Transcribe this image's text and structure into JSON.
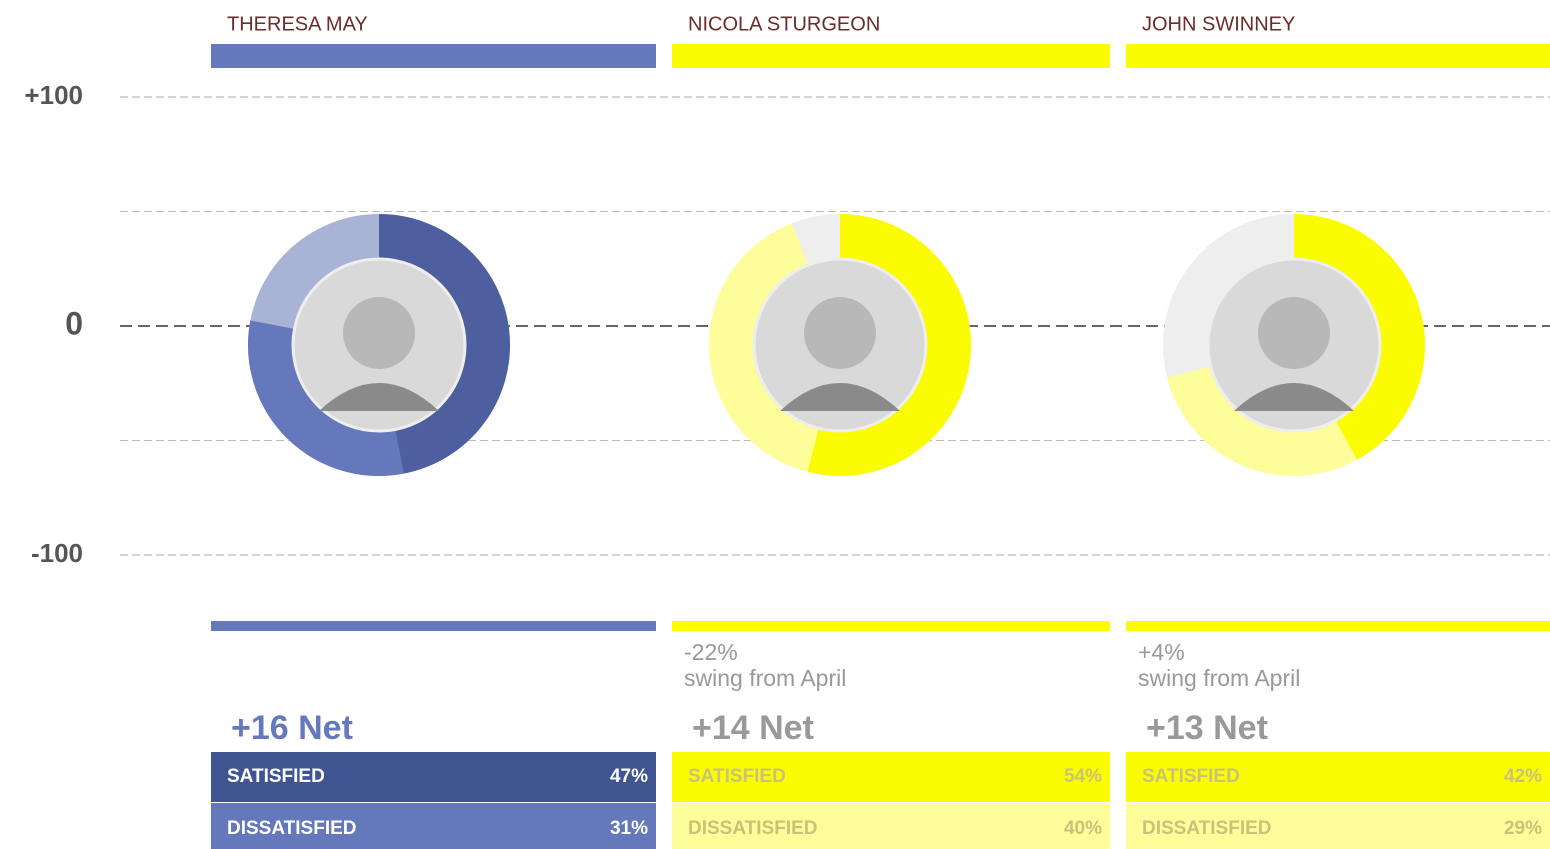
{
  "chart_data": {
    "type": "net-donut",
    "ylim": [
      -100,
      100
    ],
    "yticks": [
      {
        "value": 100,
        "label": "+100"
      },
      0,
      -100
    ],
    "minor_yticks": [
      50,
      -50
    ],
    "grid": true,
    "row_labels": {
      "satisfied": "SATISFIED",
      "dissatisfied": "DISSATISFIED"
    },
    "series": [
      {
        "name": "THERESA MAY",
        "color": "#6478bb",
        "dark_color": "#3f5490",
        "rest_color": "#a9b3d6",
        "net_color": "#6478bb",
        "row_text_color": "#ffffff",
        "satisfied": 47,
        "satisfied_label": "47%",
        "dissatisfied": 31,
        "dissatisfied_label": "31%",
        "net": 16,
        "net_label": "+16 Net"
      },
      {
        "name": "NICOLA STURGEON",
        "color": "#fcfc00",
        "dark_color": "#fcfc00",
        "light_color": "#fdfd99",
        "rest_color": "#eeeeee",
        "net_color": "#999999",
        "row_text_color": "#c9c27a",
        "satisfied": 54,
        "satisfied_label": "54%",
        "dissatisfied": 40,
        "dissatisfied_label": "40%",
        "net": 14,
        "net_label": "+14 Net",
        "swing": -22,
        "swing_label": "-22%",
        "swing_text": "swing from April"
      },
      {
        "name": "JOHN SWINNEY",
        "color": "#fcfc00",
        "dark_color": "#fcfc00",
        "light_color": "#fdfd99",
        "rest_color": "#eeeeee",
        "net_color": "#999999",
        "row_text_color": "#c9c27a",
        "satisfied": 42,
        "satisfied_label": "42%",
        "dissatisfied": 29,
        "dissatisfied_label": "29%",
        "net": 13,
        "net_label": "+13 Net",
        "swing": 4,
        "swing_label": "+4%",
        "swing_text": "swing from April"
      }
    ]
  }
}
